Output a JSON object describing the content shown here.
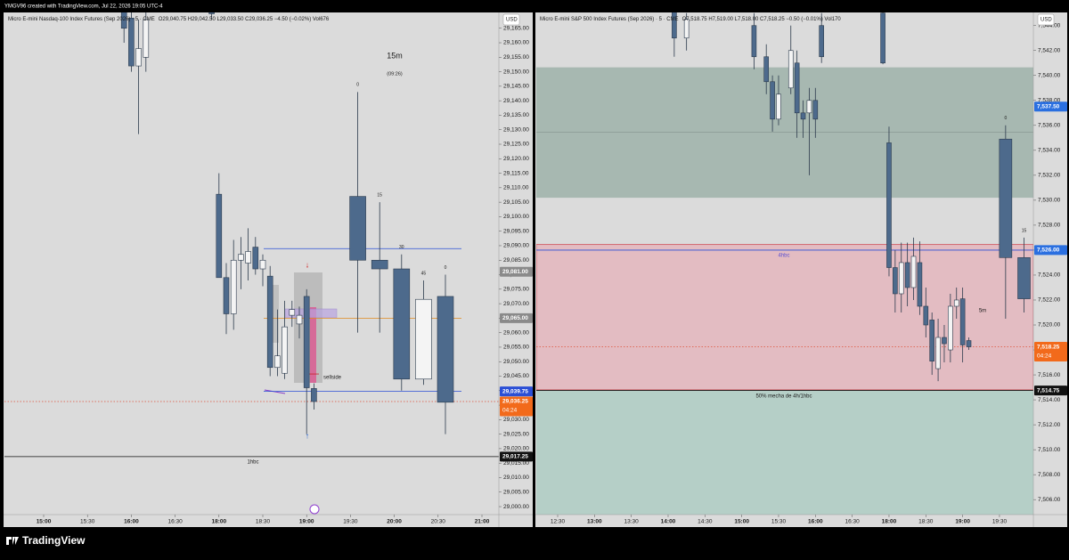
{
  "header": "YMGV96 created with TradingView.com, Jul 22, 2026 19:05 UTC-4",
  "footer": "TradingView",
  "chart_data": [
    {
      "type": "candlestick",
      "title": "Micro E-mini Nasdaq-100 Index Futures (Sep 2026) · 5 · CME",
      "ohlc_legend": "O29,040.75 H29,042.50 L29,033.50 C29,036.25 −4.50 (−0.02%) Vol676",
      "currency": "USD",
      "countdown": "04:24",
      "colors": {
        "down": "#4d6a8c",
        "up": "#f4f4f4",
        "wick": "#2b3a4c"
      },
      "x": [
        "15:55",
        "16:00",
        "16:05",
        "16:10",
        "16:55",
        "18:00",
        "18:05",
        "18:10",
        "18:15",
        "18:20",
        "18:25",
        "18:30",
        "18:35",
        "18:40",
        "18:45",
        "18:50",
        "18:55",
        "19:00",
        "19:05"
      ],
      "open": [
        29172,
        29168.5,
        29152,
        29155,
        29172,
        29107.75,
        29079,
        29066.5,
        29085,
        29084,
        29089.5,
        29082,
        29079.5,
        29048,
        29046,
        29066,
        29063,
        29072.5,
        29040.75
      ],
      "high": [
        29180,
        29175,
        29168,
        29175,
        29176,
        29115,
        29084,
        29092,
        29093,
        29096,
        29093,
        29087,
        29083,
        29068,
        29071,
        29071,
        29069,
        29075,
        29042.5
      ],
      "low": [
        29160,
        29150,
        29128.5,
        29150,
        29168,
        29079,
        29059.5,
        29061,
        29075,
        29078,
        29080,
        29076,
        29045,
        29045,
        29044,
        29062,
        29058,
        29025,
        29033.5
      ],
      "close": [
        29165,
        29152,
        29158,
        29168,
        29170,
        29079,
        29066.5,
        29085,
        29087,
        29088,
        29082,
        29085,
        29048,
        29052,
        29062,
        29068,
        29066,
        29041,
        29036.25
      ],
      "htf": {
        "name": "15m",
        "countdown": "(09:26)",
        "x": [
          "19:35",
          "19:50",
          "20:05",
          "20:20",
          "20:35"
        ],
        "labels": [
          "0",
          "15",
          "30",
          "45",
          "0"
        ],
        "open": [
          29107,
          29085,
          29082,
          29044,
          29072.5
        ],
        "high": [
          29143,
          29105,
          29087,
          29078,
          29080
        ],
        "low": [
          29060,
          29060,
          29040,
          29042,
          29025
        ],
        "close": [
          29085,
          29082,
          29044,
          29071.5,
          29036
        ]
      },
      "levels": [
        {
          "value": 29089,
          "color": "#2a4fd6"
        },
        {
          "value": 29065,
          "color": "#e08a1e"
        },
        {
          "value": 29039.75,
          "color": "#2a4fd6"
        },
        {
          "value": 29045.75,
          "color": "#c8202a"
        },
        {
          "value": 29036.25,
          "color": "#e0503a",
          "style": "dotted"
        },
        {
          "value": 29017.25,
          "color": "#111111"
        }
      ],
      "price_tags": [
        {
          "value": 29081,
          "label": "29,081.00",
          "color": "#8a8a8a"
        },
        {
          "value": 29065,
          "label": "29,065.00",
          "color": "#8a8a8a"
        },
        {
          "value": 29039.75,
          "label": "29,039.75",
          "color": "#2a4fd6"
        },
        {
          "value": 29036.25,
          "label": "29,036.25",
          "color": "#f26a1b",
          "current": true
        },
        {
          "value": 29017.25,
          "label": "29,017.25",
          "color": "#111111"
        }
      ],
      "annotations": [
        "sellside",
        "1hbc"
      ],
      "ylim": [
        28997.25,
        29170.45
      ],
      "yticks": [
        {
          "value": 29000,
          "label": "29,000.00"
        },
        {
          "value": 29005,
          "label": "29,005.00"
        },
        {
          "value": 29010,
          "label": "29,010.00"
        },
        {
          "value": 29015,
          "label": "29,015.00"
        },
        {
          "value": 29020,
          "label": "29,020.00"
        },
        {
          "value": 29025,
          "label": "29,025.00"
        },
        {
          "value": 29030,
          "label": "29,030.00"
        },
        {
          "value": 29035,
          "label": "29,035.00"
        },
        {
          "value": 29040,
          "label": "29,040.00"
        },
        {
          "value": 29045,
          "label": "29,045.00"
        },
        {
          "value": 29050,
          "label": "29,050.00"
        },
        {
          "value": 29055,
          "label": "29,055.00"
        },
        {
          "value": 29060,
          "label": "29,060.00"
        },
        {
          "value": 29065,
          "label": "29,065.00"
        },
        {
          "value": 29070,
          "label": "29,070.00"
        },
        {
          "value": 29075,
          "label": "29,075.00"
        },
        {
          "value": 29080,
          "label": "29,080.00"
        },
        {
          "value": 29085,
          "label": "29,085.00"
        },
        {
          "value": 29090,
          "label": "29,090.00"
        },
        {
          "value": 29095,
          "label": "29,095.00"
        },
        {
          "value": 29100,
          "label": "29,100.00"
        },
        {
          "value": 29105,
          "label": "29,105.00"
        },
        {
          "value": 29110,
          "label": "29,110.00"
        },
        {
          "value": 29115,
          "label": "29,115.00"
        },
        {
          "value": 29120,
          "label": "29,120.00"
        },
        {
          "value": 29125,
          "label": "29,125.00"
        },
        {
          "value": 29130,
          "label": "29,130.00"
        },
        {
          "value": 29135,
          "label": "29,135.00"
        },
        {
          "value": 29140,
          "label": "29,140.00"
        },
        {
          "value": 29145,
          "label": "29,145.00"
        },
        {
          "value": 29150,
          "label": "29,150.00"
        },
        {
          "value": 29155,
          "label": "29,155.00"
        },
        {
          "value": 29160,
          "label": "29,160.00"
        },
        {
          "value": 29165,
          "label": "29,165.00"
        }
      ],
      "xticks": [
        "15:00",
        "15:30",
        "16:00",
        "16:30",
        "18:00",
        "18:30",
        "19:00",
        "19:30",
        "20:00",
        "20:30",
        "21:00"
      ]
    },
    {
      "type": "candlestick",
      "title": "Micro E-mini S&P 500 Index Futures (Sep 2026) · 5 · CME",
      "ohlc_legend": "O7,518.75 H7,519.00 L7,518.00 C7,518.25 −0.50 (−0.01%) Vol170",
      "currency": "USD",
      "countdown": "04:24",
      "colors": {
        "down": "#4d6a8c",
        "up": "#f4f4f4",
        "wick": "#2b3a4c"
      },
      "x": [
        "14:05",
        "14:15",
        "15:10",
        "15:20",
        "15:25",
        "15:30",
        "15:40",
        "15:45",
        "15:50",
        "15:55",
        "16:00",
        "16:05",
        "16:55",
        "18:00",
        "18:05",
        "18:10",
        "18:15",
        "18:20",
        "18:25",
        "18:30",
        "18:35",
        "18:40",
        "18:45",
        "18:50",
        "18:55",
        "19:00",
        "19:05"
      ],
      "open": [
        7545.5,
        7543,
        7544,
        7541.5,
        7539.5,
        7536.5,
        7539,
        7541,
        7537,
        7537,
        7538,
        7544,
        7545,
        7534.6,
        7524.6,
        7522.5,
        7525,
        7523,
        7525,
        7521.5,
        7520.4,
        7516.5,
        7519,
        7518,
        7521.5,
        7522.1,
        7518.75
      ],
      "high": [
        7546,
        7545,
        7545,
        7542.5,
        7540,
        7540,
        7544,
        7542,
        7538,
        7539,
        7539,
        7545,
        7546,
        7535.9,
        7526,
        7526.6,
        7526.6,
        7527,
        7526.7,
        7523,
        7521,
        7520.5,
        7520,
        7522.5,
        7523,
        7523,
        7519
      ],
      "low": [
        7541.5,
        7542,
        7540.5,
        7538.5,
        7535.5,
        7536,
        7538.5,
        7535,
        7535,
        7532,
        7535,
        7541,
        7540.9,
        7523.9,
        7521,
        7521,
        7521.5,
        7522,
        7520.8,
        7519,
        7516,
        7515.5,
        7517,
        7517,
        7520.5,
        7517,
        7518
      ],
      "close": [
        7543,
        7544.5,
        7541.5,
        7539.5,
        7536.5,
        7538.5,
        7542,
        7537,
        7536.5,
        7538,
        7536.5,
        7541.5,
        7541,
        7524.6,
        7522.5,
        7525,
        7523,
        7525.5,
        7521.5,
        7520,
        7517.1,
        7519,
        7518.5,
        7521.5,
        7522,
        7518.4,
        7518.25
      ],
      "htf": {
        "x": [
          "19:35",
          "19:50"
        ],
        "labels": [
          "0",
          "15"
        ],
        "open": [
          7534.9,
          7525.4
        ],
        "high": [
          7536,
          7527
        ],
        "low": [
          7520.5,
          7521
        ],
        "close": [
          7525.4,
          7522.1
        ]
      },
      "zones": [
        {
          "top": 7540.65,
          "bottom": 7530.2,
          "color": "#a7b8b1"
        },
        {
          "top": 7526.45,
          "bottom": 7514.8,
          "color": "#e3bcc2",
          "border": "#d0505a"
        },
        {
          "top": 7514.75,
          "bottom": 7504.8,
          "color": "#b5cfc7"
        }
      ],
      "levels": [
        {
          "value": 7535.45,
          "color": "#8a9a94"
        },
        {
          "value": 7526,
          "color": "#2a4fd6"
        },
        {
          "value": 7518.25,
          "color": "#e0503a",
          "style": "dotted"
        },
        {
          "value": 7514.75,
          "color": "#111111"
        }
      ],
      "price_tags": [
        {
          "value": 7537.5,
          "label": "7,537.50",
          "color": "#2a6fe0"
        },
        {
          "value": 7526,
          "label": "7,526.00",
          "color": "#2a6fe0"
        },
        {
          "value": 7518.25,
          "label": "7,518.25",
          "color": "#f26a1b",
          "current": true
        },
        {
          "value": 7514.75,
          "label": "7,514.75",
          "color": "#111111"
        }
      ],
      "annotations": [
        "4hbc",
        "50% mecha de 4h/1hbc",
        "5m"
      ],
      "ylim": [
        7504.8,
        7545.05
      ],
      "yticks": [
        {
          "value": 7506,
          "label": "7,506.00"
        },
        {
          "value": 7508,
          "label": "7,508.00"
        },
        {
          "value": 7510,
          "label": "7,510.00"
        },
        {
          "value": 7512,
          "label": "7,512.00"
        },
        {
          "value": 7514,
          "label": "7,514.00"
        },
        {
          "value": 7516,
          "label": "7,516.00"
        },
        {
          "value": 7518,
          "label": "7,518.00"
        },
        {
          "value": 7520,
          "label": "7,520.00"
        },
        {
          "value": 7522,
          "label": "7,522.00"
        },
        {
          "value": 7524,
          "label": "7,524.00"
        },
        {
          "value": 7526,
          "label": "7,526.00"
        },
        {
          "value": 7528,
          "label": "7,528.00"
        },
        {
          "value": 7530,
          "label": "7,530.00"
        },
        {
          "value": 7532,
          "label": "7,532.00"
        },
        {
          "value": 7534,
          "label": "7,534.00"
        },
        {
          "value": 7536,
          "label": "7,536.00"
        },
        {
          "value": 7538,
          "label": "7,538.00"
        },
        {
          "value": 7540,
          "label": "7,540.00"
        },
        {
          "value": 7542,
          "label": "7,542.00"
        },
        {
          "value": 7544,
          "label": "7,544.00"
        }
      ],
      "xticks": [
        "12:30",
        "13:00",
        "13:30",
        "14:00",
        "14:30",
        "15:00",
        "15:30",
        "16:00",
        "16:30",
        "18:00",
        "18:30",
        "19:00",
        "19:30"
      ]
    }
  ]
}
